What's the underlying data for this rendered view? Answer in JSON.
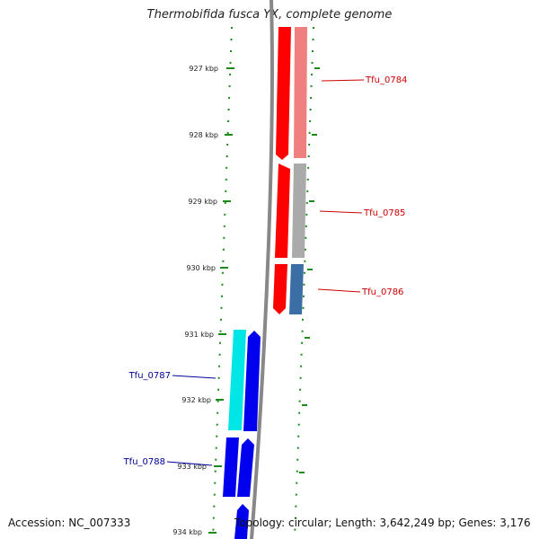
{
  "title": "Thermobifida fusca YX, complete genome",
  "footer": {
    "accession": "Accession: NC_007333",
    "topology": "Topology: circular; Length: 3,642,249 bp; Genes: 3,176"
  },
  "colors": {
    "forward_strand": "#ff0000",
    "forward_feature": "#f08080",
    "reverse_strand": "#0000ee",
    "reverse_feature": "#00e5e5",
    "grey_feature": "#aaaaaa",
    "steelblue_feature": "#3a6ea5",
    "tick": "#1a8a1a",
    "backbone": "#888888"
  },
  "ticks": [
    {
      "label": "927 kbp"
    },
    {
      "label": "928 kbp"
    },
    {
      "label": "929 kbp"
    },
    {
      "label": "930 kbp"
    },
    {
      "label": "931 kbp"
    },
    {
      "label": "932 kbp"
    },
    {
      "label": "933 kbp"
    },
    {
      "label": "934 kbp"
    }
  ],
  "genes": [
    {
      "label": "Tfu_0784",
      "strand": "forward"
    },
    {
      "label": "Tfu_0785",
      "strand": "forward"
    },
    {
      "label": "Tfu_0786",
      "strand": "forward"
    },
    {
      "label": "Tfu_0787",
      "strand": "reverse"
    },
    {
      "label": "Tfu_0788",
      "strand": "reverse"
    }
  ]
}
